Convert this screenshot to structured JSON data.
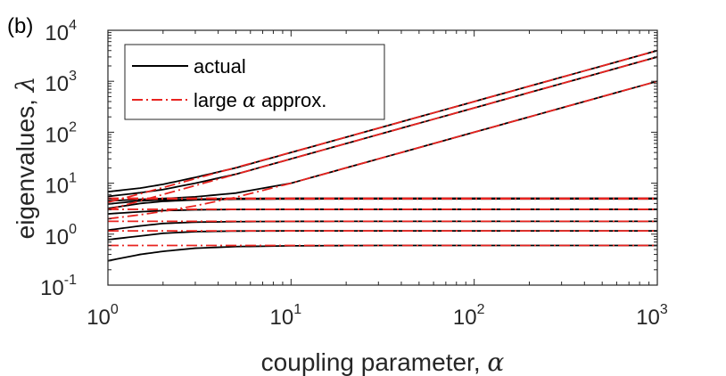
{
  "chart_data": {
    "type": "line",
    "panel_label": "(b)",
    "xlabel": {
      "text": "coupling parameter, ",
      "symbol": "α"
    },
    "ylabel": {
      "text": "eigenvalues, ",
      "symbol": "λ"
    },
    "x_scale": "log",
    "y_scale": "log",
    "xlim": [
      1,
      1000
    ],
    "ylim": [
      0.1,
      10000
    ],
    "x_ticks": [
      {
        "value": 1,
        "base": "10",
        "exp": "0"
      },
      {
        "value": 10,
        "base": "10",
        "exp": "1"
      },
      {
        "value": 100,
        "base": "10",
        "exp": "2"
      },
      {
        "value": 1000,
        "base": "10",
        "exp": "3"
      }
    ],
    "y_ticks": [
      {
        "value": 0.1,
        "base": "10",
        "exp": "-1"
      },
      {
        "value": 1,
        "base": "10",
        "exp": "0"
      },
      {
        "value": 10,
        "base": "10",
        "exp": "1"
      },
      {
        "value": 100,
        "base": "10",
        "exp": "2"
      },
      {
        "value": 1000,
        "base": "10",
        "exp": "3"
      },
      {
        "value": 10000,
        "base": "10",
        "exp": "4"
      }
    ],
    "grid": false,
    "legend": {
      "position": "top-left",
      "entries": [
        {
          "label": "actual",
          "style": "solid",
          "color": "#000000"
        },
        {
          "label_pre": "large ",
          "label_symbol": "α",
          "label_post": " approx.",
          "style": "dashdot",
          "color": "#e8231f"
        }
      ]
    },
    "x": [
      1,
      1.5,
      2,
      3,
      5,
      10,
      30,
      100,
      300,
      1000
    ],
    "series": [
      {
        "group": "actual",
        "values": [
          0.3,
          0.4,
          0.46,
          0.53,
          0.57,
          0.59,
          0.6,
          0.6,
          0.6,
          0.6
        ]
      },
      {
        "group": "actual",
        "values": [
          0.78,
          0.92,
          1.04,
          1.12,
          1.15,
          1.16,
          1.16,
          1.16,
          1.16,
          1.16
        ]
      },
      {
        "group": "actual",
        "values": [
          1.2,
          1.45,
          1.62,
          1.72,
          1.76,
          1.78,
          1.79,
          1.79,
          1.79,
          1.79
        ]
      },
      {
        "group": "actual",
        "values": [
          2.5,
          2.75,
          2.9,
          3.0,
          3.05,
          3.07,
          3.07,
          3.07,
          3.07,
          3.07
        ]
      },
      {
        "group": "actual",
        "values": [
          3.2,
          4.0,
          4.4,
          4.7,
          4.85,
          4.9,
          4.92,
          4.92,
          4.92,
          4.92
        ]
      },
      {
        "group": "actual",
        "values": [
          3.9,
          4.5,
          4.7,
          4.85,
          5.0,
          5.05,
          5.05,
          5.05,
          5.05,
          5.05
        ]
      },
      {
        "group": "actual",
        "values": [
          4.5,
          4.8,
          5.0,
          5.4,
          6.4,
          10.0,
          30.0,
          100.0,
          300.0,
          1000.0
        ]
      },
      {
        "group": "actual",
        "values": [
          5.5,
          6.5,
          7.5,
          10.0,
          15.0,
          30.0,
          90.0,
          300.0,
          900.0,
          3000.0
        ]
      },
      {
        "group": "actual",
        "values": [
          6.8,
          8.0,
          9.5,
          13.0,
          20.0,
          40.0,
          120.0,
          400.0,
          1200.0,
          4000.0
        ]
      },
      {
        "group": "approx",
        "values": [
          0.6,
          0.6,
          0.6,
          0.6,
          0.6,
          0.6,
          0.6,
          0.6,
          0.6,
          0.6
        ]
      },
      {
        "group": "approx",
        "values": [
          1.16,
          1.16,
          1.16,
          1.16,
          1.16,
          1.16,
          1.16,
          1.16,
          1.16,
          1.16
        ]
      },
      {
        "group": "approx",
        "values": [
          1.79,
          1.79,
          1.79,
          1.79,
          1.79,
          1.79,
          1.79,
          1.79,
          1.79,
          1.79
        ]
      },
      {
        "group": "approx",
        "values": [
          3.07,
          3.07,
          3.07,
          3.07,
          3.07,
          3.07,
          3.07,
          3.07,
          3.07,
          3.07
        ]
      },
      {
        "group": "approx",
        "values": [
          4.92,
          4.92,
          4.92,
          4.92,
          4.92,
          4.92,
          4.92,
          4.92,
          4.92,
          4.92
        ]
      },
      {
        "group": "approx",
        "values": [
          5.05,
          5.05,
          5.05,
          5.05,
          5.05,
          5.05,
          5.05,
          5.05,
          5.05,
          5.05
        ]
      },
      {
        "group": "approx",
        "values": [
          2.0,
          2.4,
          2.8,
          3.6,
          5.3,
          10.0,
          30.0,
          100.0,
          300.0,
          1000.0
        ]
      },
      {
        "group": "approx",
        "values": [
          3.0,
          4.5,
          6.0,
          9.0,
          15.0,
          30.0,
          90.0,
          300.0,
          900.0,
          3000.0
        ]
      },
      {
        "group": "approx",
        "values": [
          4.2,
          6.2,
          8.2,
          12.3,
          20.3,
          40.2,
          120.0,
          400.0,
          1200.0,
          4000.0
        ]
      }
    ]
  }
}
